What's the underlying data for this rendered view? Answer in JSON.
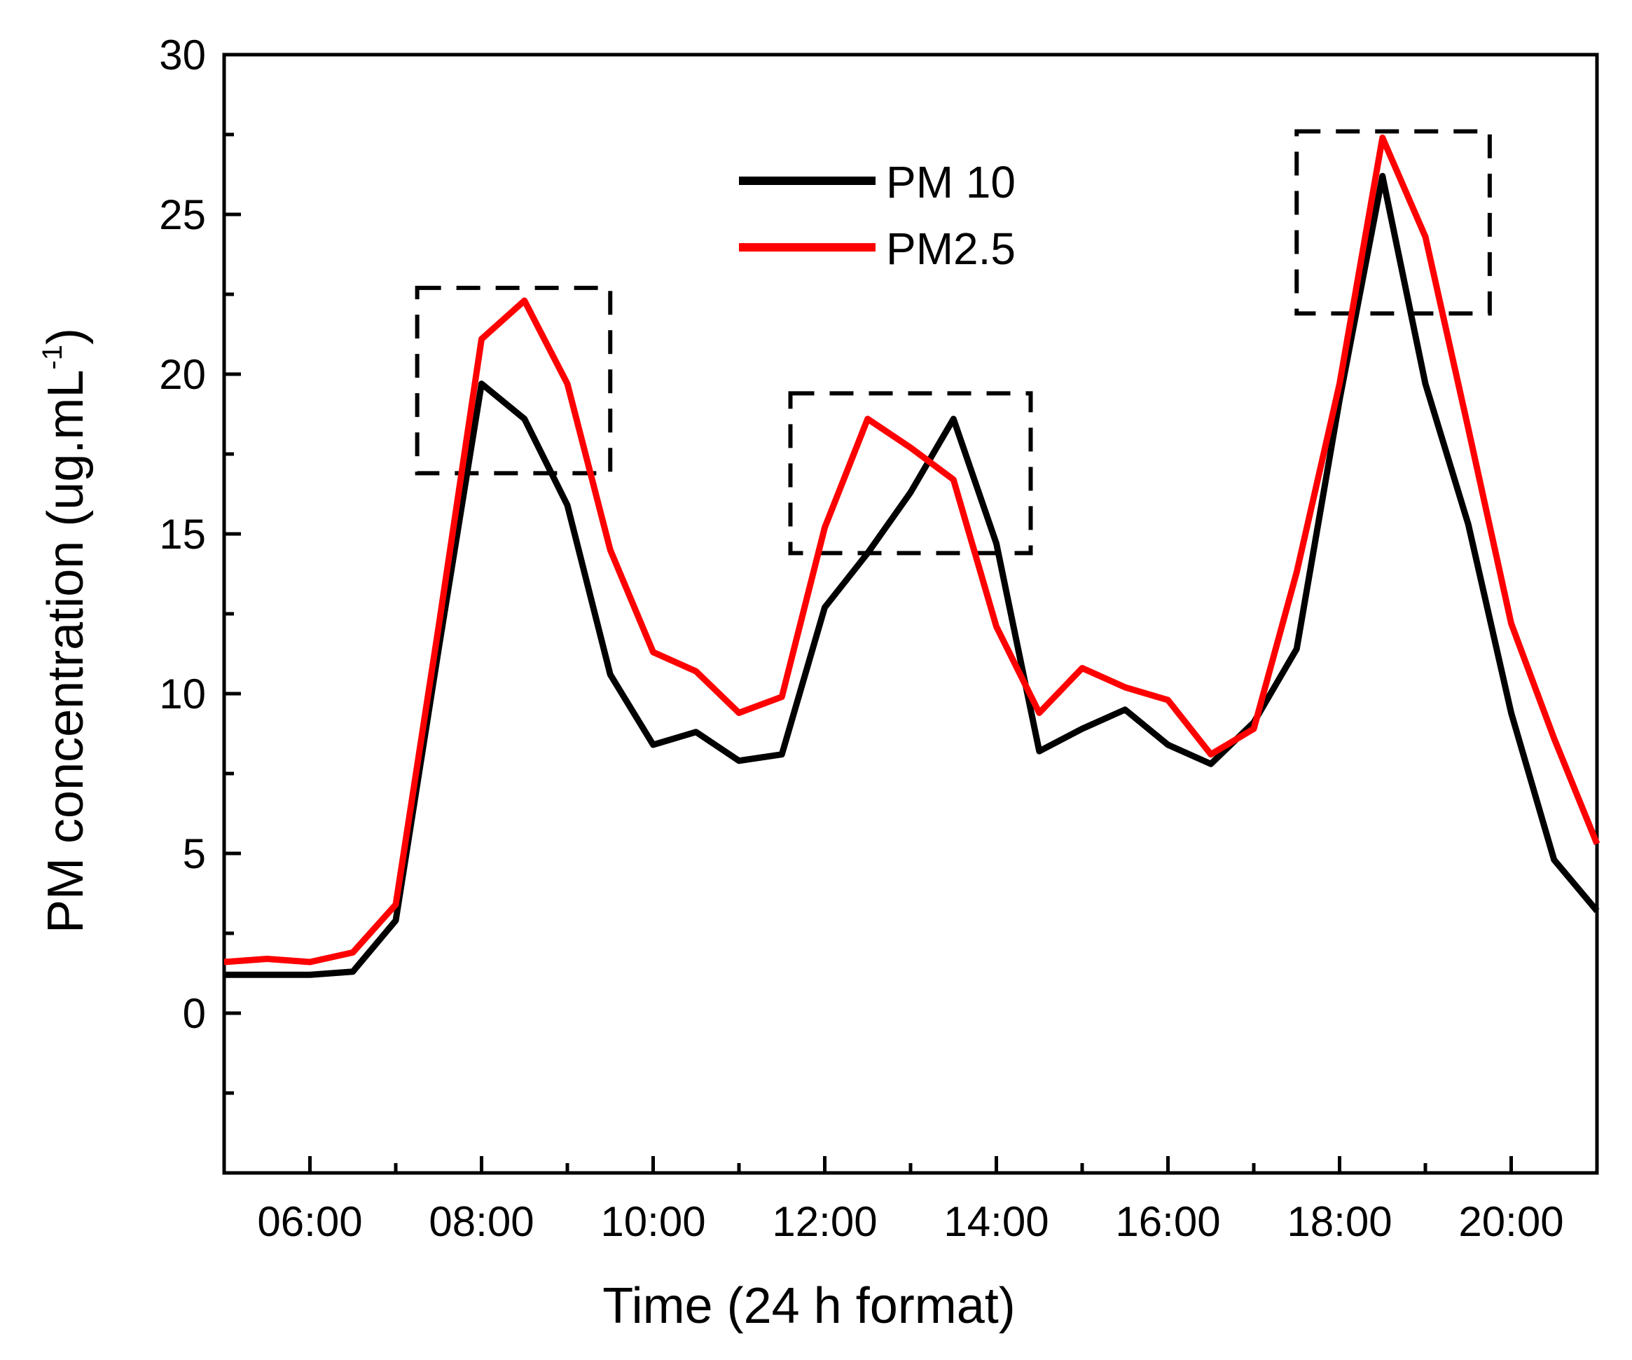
{
  "chart_data": {
    "type": "line",
    "xlabel": "Time (24 h format)",
    "ylabel_main": "PM concentration (ug.mL",
    "ylabel_sup": "-1",
    "ylabel_close": ")",
    "xlim": [
      5,
      21
    ],
    "ylim": [
      -5,
      30
    ],
    "x_ticks": [
      {
        "value": 6,
        "label": "06:00"
      },
      {
        "value": 8,
        "label": "08:00"
      },
      {
        "value": 10,
        "label": "10:00"
      },
      {
        "value": 12,
        "label": "12:00"
      },
      {
        "value": 14,
        "label": "14:00"
      },
      {
        "value": 16,
        "label": "16:00"
      },
      {
        "value": 18,
        "label": "18:00"
      },
      {
        "value": 20,
        "label": "20:00"
      }
    ],
    "y_ticks": [
      {
        "value": 0,
        "label": "0"
      },
      {
        "value": 5,
        "label": "5"
      },
      {
        "value": 10,
        "label": "10"
      },
      {
        "value": 15,
        "label": "15"
      },
      {
        "value": 20,
        "label": "20"
      },
      {
        "value": 25,
        "label": "25"
      },
      {
        "value": 30,
        "label": "30"
      }
    ],
    "x": [
      5.0,
      5.5,
      6.0,
      6.5,
      7.0,
      7.5,
      8.0,
      8.5,
      9.0,
      9.5,
      10.0,
      10.5,
      11.0,
      11.5,
      12.0,
      12.5,
      13.0,
      13.5,
      14.0,
      14.5,
      15.0,
      15.5,
      16.0,
      16.5,
      17.0,
      17.5,
      18.0,
      18.5,
      19.0,
      19.5,
      20.0,
      20.5,
      21.0
    ],
    "series": [
      {
        "name": "PM 10",
        "color": "#000000",
        "values": [
          1.2,
          1.2,
          1.2,
          1.3,
          2.9,
          11.4,
          19.7,
          18.6,
          15.9,
          10.6,
          8.4,
          8.8,
          7.9,
          8.1,
          12.7,
          14.4,
          16.3,
          18.6,
          14.7,
          8.2,
          8.9,
          9.5,
          8.4,
          7.8,
          9.1,
          11.4,
          19.2,
          26.2,
          19.7,
          15.3,
          9.4,
          4.8,
          3.2
        ]
      },
      {
        "name": "PM2.5",
        "color": "#ff0000",
        "values": [
          1.6,
          1.7,
          1.6,
          1.9,
          3.4,
          12.1,
          21.1,
          22.3,
          19.7,
          14.5,
          11.3,
          10.7,
          9.4,
          9.9,
          15.2,
          18.6,
          17.7,
          16.7,
          12.1,
          9.4,
          10.8,
          10.2,
          9.8,
          8.1,
          8.9,
          13.8,
          19.7,
          27.4,
          24.3,
          18.3,
          12.2,
          8.6,
          5.3
        ]
      }
    ],
    "legend_position": "top-center",
    "annotation_boxes": [
      {
        "x_range": [
          7.25,
          9.5
        ],
        "y_range": [
          16.9,
          22.7
        ]
      },
      {
        "x_range": [
          11.6,
          14.4
        ],
        "y_range": [
          14.4,
          19.4
        ]
      },
      {
        "x_range": [
          17.5,
          19.75
        ],
        "y_range": [
          21.9,
          27.6
        ]
      }
    ]
  }
}
